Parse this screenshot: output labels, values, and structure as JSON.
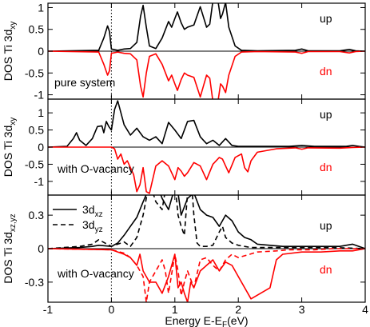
{
  "colors": {
    "up": "#000000",
    "dn": "#ff0000",
    "frame": "#000000"
  },
  "chart_data": [
    {
      "type": "line",
      "panel": "top",
      "ylabel_main": "DOS Ti 3d",
      "ylabel_sub": "xy",
      "ylim": [
        -1.1,
        1.1
      ],
      "yticks": [
        -1,
        -0.5,
        0,
        0.5,
        1
      ],
      "ytick_labels": [
        "-1",
        "-0.5",
        "0",
        "0.5",
        "1"
      ],
      "annotation": "pure system",
      "up_label": "up",
      "dn_label": "dn",
      "series": [
        {
          "spin": "up",
          "style": "solid",
          "x": [
            -1,
            -0.2,
            -0.12,
            -0.06,
            -0.03,
            0.0,
            0.1,
            0.2,
            0.3,
            0.4,
            0.46,
            0.5,
            0.55,
            0.6,
            0.7,
            0.8,
            0.9,
            0.95,
            1.0,
            1.04,
            1.1,
            1.15,
            1.2,
            1.3,
            1.4,
            1.5,
            1.55,
            1.6,
            1.68,
            1.72,
            1.75,
            1.8,
            1.85,
            1.95,
            2.05,
            2.3,
            2.9,
            3.0,
            3.1,
            3.6,
            3.75,
            3.85,
            4.0
          ],
          "y": [
            0,
            0.02,
            0.3,
            0.58,
            0.45,
            0.05,
            0.02,
            0.05,
            0.06,
            0.2,
            0.8,
            1.05,
            0.55,
            0.12,
            0.06,
            0.3,
            0.68,
            0.55,
            0.75,
            0.9,
            0.65,
            0.5,
            0.55,
            0.6,
            1.02,
            0.55,
            0.62,
            1.15,
            1.15,
            0.75,
            0.85,
            1.12,
            0.55,
            0.12,
            0.02,
            0.01,
            0.02,
            0.05,
            0.01,
            0.01,
            0.04,
            0.01,
            0
          ]
        },
        {
          "spin": "dn",
          "style": "solid",
          "x": [
            -1,
            -0.2,
            -0.12,
            -0.06,
            -0.03,
            0.0,
            0.1,
            0.2,
            0.3,
            0.4,
            0.46,
            0.5,
            0.55,
            0.6,
            0.7,
            0.8,
            0.9,
            0.95,
            1.0,
            1.04,
            1.1,
            1.15,
            1.2,
            1.3,
            1.4,
            1.5,
            1.55,
            1.6,
            1.68,
            1.72,
            1.75,
            1.8,
            1.85,
            1.95,
            2.05,
            2.3,
            2.9,
            3.0,
            3.1,
            3.6,
            3.75,
            3.85,
            4.0
          ],
          "y": [
            0,
            -0.02,
            -0.3,
            -0.55,
            -0.45,
            -0.05,
            -0.02,
            -0.05,
            -0.06,
            -0.2,
            -0.8,
            -1.05,
            -0.5,
            -0.12,
            -0.06,
            -0.3,
            -0.68,
            -0.55,
            -0.75,
            -0.9,
            -0.65,
            -0.5,
            -0.55,
            -0.6,
            -1.05,
            -0.55,
            -0.62,
            -1.15,
            -1.15,
            -0.75,
            -0.8,
            -0.95,
            -0.55,
            -0.12,
            -0.02,
            -0.01,
            -0.02,
            -0.05,
            -0.01,
            -0.01,
            -0.04,
            -0.01,
            0
          ]
        }
      ]
    },
    {
      "type": "line",
      "panel": "middle",
      "ylabel_main": "DOS Ti 3d",
      "ylabel_sub": "xy",
      "ylim": [
        -1.4,
        1.4
      ],
      "yticks": [
        -1,
        -0.5,
        0,
        0.5,
        1
      ],
      "ytick_labels": [
        "-1",
        "-0.5",
        "0",
        "0.5",
        "1"
      ],
      "annotation": "with O-vacancy",
      "up_label": "up",
      "dn_label": "dn",
      "series": [
        {
          "spin": "up",
          "style": "solid",
          "x": [
            -1,
            -0.7,
            -0.6,
            -0.55,
            -0.5,
            -0.4,
            -0.3,
            -0.22,
            -0.15,
            -0.12,
            -0.08,
            -0.04,
            0.0,
            0.05,
            0.1,
            0.15,
            0.2,
            0.3,
            0.4,
            0.5,
            0.6,
            0.7,
            0.8,
            0.9,
            1.0,
            1.1,
            1.2,
            1.3,
            1.4,
            1.5,
            1.6,
            1.7,
            1.8,
            1.9,
            2.0,
            2.2,
            2.8,
            3.0,
            3.2,
            3.7,
            3.8,
            3.9,
            4.0
          ],
          "y": [
            0,
            0.02,
            0.25,
            0.42,
            0.2,
            0.05,
            0.25,
            0.6,
            0.62,
            0.42,
            0.75,
            0.6,
            0.5,
            1.1,
            1.35,
            1.0,
            0.65,
            0.35,
            0.55,
            0.3,
            0.2,
            0.3,
            0.1,
            0.72,
            0.5,
            0.25,
            0.75,
            0.78,
            0.3,
            0.1,
            0.2,
            0.05,
            0.25,
            0.05,
            0.02,
            0.02,
            0.02,
            0.05,
            0.02,
            0.02,
            0.05,
            0.02,
            0
          ]
        },
        {
          "spin": "dn",
          "style": "solid",
          "x": [
            -1,
            0.0,
            0.05,
            0.1,
            0.15,
            0.2,
            0.25,
            0.3,
            0.35,
            0.4,
            0.45,
            0.5,
            0.55,
            0.6,
            0.7,
            0.8,
            0.9,
            1.0,
            1.05,
            1.1,
            1.15,
            1.2,
            1.3,
            1.4,
            1.5,
            1.6,
            1.7,
            1.75,
            1.8,
            1.85,
            1.95,
            2.05,
            2.1,
            2.15,
            2.2,
            2.3,
            2.6,
            2.9,
            3.0,
            3.1,
            3.6,
            3.8,
            4.0
          ],
          "y": [
            0,
            0,
            -0.05,
            -0.35,
            -0.2,
            -0.5,
            -0.4,
            -0.6,
            -0.8,
            -1.3,
            -1.1,
            -0.6,
            -1.3,
            -1.35,
            -0.55,
            -0.4,
            -0.55,
            -0.95,
            -0.6,
            -0.7,
            -0.85,
            -0.75,
            -0.45,
            -0.55,
            -0.95,
            -0.5,
            -0.3,
            -0.35,
            -0.55,
            -0.75,
            -0.3,
            -0.2,
            -0.6,
            -0.72,
            -0.4,
            -0.15,
            -0.05,
            -0.02,
            -0.06,
            -0.02,
            -0.03,
            -0.01,
            0
          ]
        }
      ]
    },
    {
      "type": "line",
      "panel": "bottom",
      "ylabel_main": "DOS Ti 3d",
      "ylabel_sub": "xz,yz",
      "ylim": [
        -0.48,
        0.48
      ],
      "yticks": [
        -0.3,
        0,
        0.3
      ],
      "ytick_labels": [
        "-0.3",
        "0",
        "0.3"
      ],
      "annotation": "with O-vacancy",
      "up_label": "up",
      "dn_label": "dn",
      "legend": [
        {
          "main": "3d",
          "sub": "xz",
          "style": "solid"
        },
        {
          "main": "3d",
          "sub": "yz",
          "style": "dashed"
        }
      ],
      "series": [
        {
          "spin": "up",
          "style": "solid",
          "x": [
            -1,
            -0.5,
            -0.3,
            -0.2,
            0.0,
            0.1,
            0.2,
            0.3,
            0.4,
            0.5,
            0.6,
            0.7,
            0.8,
            0.9,
            1.0,
            1.05,
            1.1,
            1.2,
            1.3,
            1.4,
            1.5,
            1.6,
            1.7,
            1.8,
            1.9,
            2.0,
            2.1,
            2.2,
            2.3,
            2.5,
            2.7,
            3.0,
            3.3,
            3.6,
            3.8,
            4.0
          ],
          "y": [
            0,
            0.01,
            0.02,
            0.03,
            0.02,
            0.05,
            0.12,
            0.2,
            0.28,
            0.42,
            0.55,
            0.6,
            0.45,
            0.35,
            0.55,
            0.5,
            0.3,
            0.45,
            0.5,
            0.35,
            0.3,
            0.28,
            0.2,
            0.3,
            0.25,
            0.15,
            0.1,
            0.08,
            0.04,
            0.03,
            0.02,
            0.02,
            0.02,
            0.02,
            0.04,
            0
          ]
        },
        {
          "spin": "up",
          "style": "dashed",
          "x": [
            -1,
            -0.5,
            -0.3,
            -0.2,
            0.0,
            0.1,
            0.2,
            0.3,
            0.4,
            0.5,
            0.6,
            0.7,
            0.8,
            0.9,
            1.0,
            1.05,
            1.1,
            1.15,
            1.2,
            1.25,
            1.3,
            1.35,
            1.4,
            1.5,
            1.6,
            1.7,
            1.75,
            1.8,
            1.9,
            2.0,
            2.1,
            2.2,
            2.3,
            2.5,
            3.0,
            3.5,
            4.0
          ],
          "y": [
            0,
            0.02,
            0.04,
            0.08,
            0.02,
            0.04,
            0.06,
            0.02,
            0.1,
            0.3,
            0.6,
            0.42,
            0.35,
            0.7,
            0.6,
            0.3,
            0.2,
            0.12,
            0.5,
            0.7,
            0.3,
            0.05,
            0.02,
            0.02,
            0.03,
            0.15,
            0.2,
            0.1,
            0.05,
            0.03,
            0.02,
            0.01,
            0.01,
            0.01,
            0.01,
            0.01,
            0
          ]
        },
        {
          "spin": "dn",
          "style": "solid",
          "x": [
            -1,
            0.0,
            0.2,
            0.3,
            0.4,
            0.45,
            0.5,
            0.6,
            0.7,
            0.8,
            0.9,
            1.0,
            1.05,
            1.1,
            1.15,
            1.2,
            1.25,
            1.3,
            1.4,
            1.5,
            1.6,
            1.7,
            1.8,
            1.9,
            2.0,
            2.2,
            2.5,
            2.6,
            2.7,
            3.0,
            3.3,
            3.6,
            3.8,
            4.0
          ],
          "y": [
            0,
            -0.01,
            -0.05,
            -0.08,
            -0.15,
            -0.05,
            -0.2,
            -0.3,
            -0.3,
            -0.4,
            -0.25,
            -0.05,
            -0.35,
            -0.3,
            -0.4,
            -0.48,
            -0.3,
            -0.35,
            -0.2,
            -0.15,
            -0.1,
            -0.2,
            -0.12,
            -0.15,
            -0.25,
            -0.45,
            -0.35,
            -0.1,
            -0.05,
            -0.03,
            -0.03,
            -0.02,
            -0.02,
            0
          ]
        },
        {
          "spin": "dn",
          "style": "dashed",
          "x": [
            -1,
            0.0,
            0.2,
            0.3,
            0.4,
            0.5,
            0.55,
            0.6,
            0.7,
            0.8,
            0.85,
            0.9,
            1.0,
            1.05,
            1.1,
            1.15,
            1.2,
            1.3,
            1.4,
            1.5,
            1.6,
            1.7,
            1.8,
            1.9,
            2.0,
            2.3,
            2.6,
            2.8,
            3.0,
            3.2,
            3.5,
            3.8,
            4.0
          ],
          "y": [
            0,
            -0.01,
            -0.04,
            -0.08,
            -0.15,
            -0.25,
            -0.48,
            -0.3,
            -0.2,
            -0.1,
            -0.2,
            -0.4,
            -0.05,
            -0.2,
            -0.42,
            -0.3,
            -0.2,
            -0.35,
            -0.1,
            -0.08,
            -0.15,
            -0.2,
            -0.1,
            -0.05,
            -0.08,
            -0.03,
            -0.02,
            -0.01,
            -0.01,
            -0.01,
            0,
            0,
            0
          ]
        }
      ]
    }
  ],
  "shared_x": {
    "xlabel_prefix": "Energy E-E",
    "xlabel_sub": "F",
    "xlabel_suffix": "(eV)",
    "xlim": [
      -1,
      4
    ],
    "xticks": [
      -1,
      0,
      1,
      2,
      3,
      4
    ],
    "xtick_labels": [
      "-1",
      "0",
      "1",
      "2",
      "3",
      "4"
    ]
  }
}
